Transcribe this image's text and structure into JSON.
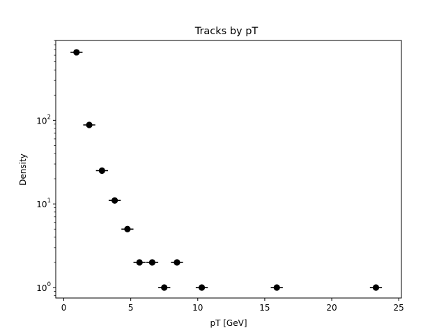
{
  "chart_data": {
    "type": "scatter",
    "title": "Tracks by pT",
    "xlabel": "pT [GeV]",
    "ylabel": "Density",
    "xlim": [
      -0.6,
      25.2
    ],
    "ylim": [
      0.75,
      900
    ],
    "yscale": "log",
    "grid": false,
    "legend": "none",
    "x_ticks": [
      0,
      5,
      10,
      15,
      20,
      25
    ],
    "y_ticks": [
      {
        "value": 1,
        "base": "10",
        "exp": "0"
      },
      {
        "value": 10,
        "base": "10",
        "exp": "1"
      },
      {
        "value": 100,
        "base": "10",
        "exp": "2"
      }
    ],
    "series": [
      {
        "marker_color": "#000000",
        "points": [
          {
            "x": 0.95,
            "y": 650,
            "xerr": 0.45
          },
          {
            "x": 1.9,
            "y": 88,
            "xerr": 0.45
          },
          {
            "x": 2.85,
            "y": 25,
            "xerr": 0.45
          },
          {
            "x": 3.8,
            "y": 11,
            "xerr": 0.45
          },
          {
            "x": 4.75,
            "y": 5,
            "xerr": 0.45
          },
          {
            "x": 5.65,
            "y": 2,
            "xerr": 0.45
          },
          {
            "x": 6.6,
            "y": 2,
            "xerr": 0.45
          },
          {
            "x": 7.5,
            "y": 1,
            "xerr": 0.45
          },
          {
            "x": 8.45,
            "y": 2,
            "xerr": 0.45
          },
          {
            "x": 10.3,
            "y": 1,
            "xerr": 0.45
          },
          {
            "x": 15.9,
            "y": 1,
            "xerr": 0.45
          },
          {
            "x": 23.3,
            "y": 1,
            "xerr": 0.45
          }
        ]
      }
    ]
  }
}
